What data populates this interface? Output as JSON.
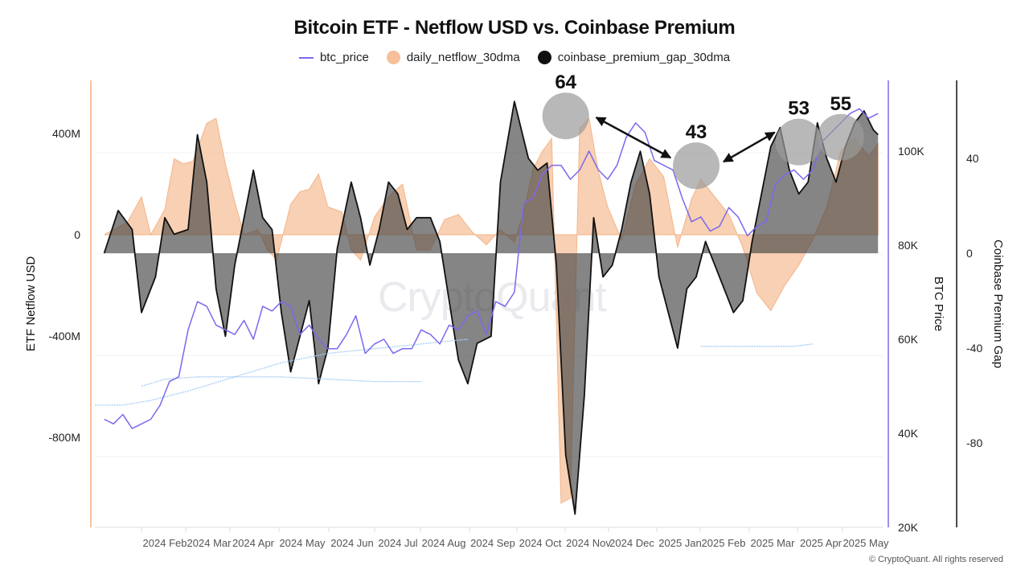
{
  "chart_data": {
    "type": "area",
    "title": "Bitcoin ETF - Netflow USD vs. Coinbase Premium",
    "legend": {
      "placement": "top-center",
      "entries": [
        {
          "name": "btc_price",
          "marker": "line",
          "color": "#7b68ee"
        },
        {
          "name": "daily_netflow_30dma",
          "marker": "dot",
          "color": "#f5c09a"
        },
        {
          "name": "coinbase_premium_gap_30dma",
          "marker": "dot",
          "color": "#111111"
        }
      ]
    },
    "x_ticks": [
      "2024 Feb",
      "2024 Mar",
      "2024 Apr",
      "2024 May",
      "2024 Jun",
      "2024 Jul",
      "2024 Aug",
      "2024 Sep",
      "2024 Oct",
      "2024 Nov",
      "2024 Dec",
      "2025 Jan",
      "2025 Feb",
      "2025 Mar",
      "2025 Apr",
      "2025 May"
    ],
    "axes": {
      "left": {
        "label": "ETF Netflow USD",
        "ticks": [
          "400M",
          "0",
          "-400M",
          "-800M"
        ],
        "tick_values": [
          400,
          0,
          -400,
          -800
        ],
        "range": [
          -1150,
          550
        ],
        "unit": "M USD"
      },
      "right1": {
        "label": "BTC Price",
        "ticks": [
          "100K",
          "80K",
          "60K",
          "40K",
          "20K"
        ],
        "tick_values": [
          100,
          80,
          60,
          40,
          20
        ],
        "range": [
          20,
          115
        ],
        "unit": "K USD"
      },
      "right2": {
        "label": "Coinbase Premium Gap",
        "ticks": [
          "40",
          "0",
          "-40",
          "-80"
        ],
        "tick_values": [
          40,
          0,
          -40,
          -80
        ],
        "range": [
          -118,
          72
        ]
      }
    },
    "x_range": [
      0,
      16.9
    ],
    "series": [
      {
        "name": "daily_netflow_30dma",
        "axis": "left",
        "x": [
          0.2,
          0.7,
          1.0,
          1.2,
          1.5,
          1.7,
          1.9,
          2.1,
          2.4,
          2.6,
          2.8,
          3.0,
          3.2,
          3.5,
          3.7,
          3.9,
          4.2,
          4.4,
          4.6,
          4.8,
          5.0,
          5.3,
          5.5,
          5.7,
          6.0,
          6.3,
          6.6,
          6.9,
          7.2,
          7.5,
          7.8,
          8.1,
          8.4,
          8.7,
          9.0,
          9.2,
          9.4,
          9.6,
          9.8,
          10.0,
          10.2,
          10.4,
          10.6,
          10.8,
          11.0,
          11.3,
          11.6,
          11.9,
          12.2,
          12.5,
          12.8,
          13.0,
          13.3,
          13.6,
          13.9,
          14.2,
          14.5,
          14.8,
          15.1,
          15.4,
          15.7,
          16.0,
          16.3,
          16.6,
          16.8
        ],
        "values": [
          0,
          50,
          150,
          0,
          100,
          300,
          280,
          290,
          440,
          460,
          280,
          130,
          0,
          20,
          -60,
          -100,
          120,
          170,
          180,
          240,
          110,
          90,
          -60,
          -100,
          70,
          150,
          200,
          -60,
          -60,
          60,
          80,
          10,
          -40,
          20,
          -30,
          90,
          260,
          330,
          380,
          -1060,
          -1040,
          420,
          460,
          250,
          110,
          -20,
          200,
          300,
          230,
          -50,
          140,
          220,
          150,
          80,
          -50,
          -230,
          -300,
          -200,
          -120,
          -20,
          110,
          330,
          380,
          310,
          360
        ]
      },
      {
        "name": "coinbase_premium_gap_30dma",
        "axis": "right2",
        "x": [
          0.2,
          0.5,
          0.8,
          1.0,
          1.3,
          1.5,
          1.7,
          2.0,
          2.2,
          2.4,
          2.6,
          2.8,
          3.0,
          3.2,
          3.4,
          3.6,
          3.8,
          4.0,
          4.2,
          4.4,
          4.6,
          4.8,
          5.0,
          5.2,
          5.5,
          5.7,
          5.9,
          6.1,
          6.3,
          6.5,
          6.7,
          6.9,
          7.2,
          7.4,
          7.6,
          7.8,
          8.0,
          8.2,
          8.5,
          8.7,
          9.0,
          9.3,
          9.5,
          9.7,
          9.9,
          10.1,
          10.3,
          10.5,
          10.7,
          10.9,
          11.1,
          11.3,
          11.5,
          11.7,
          11.9,
          12.1,
          12.3,
          12.5,
          12.7,
          12.9,
          13.1,
          13.3,
          13.5,
          13.7,
          13.9,
          14.1,
          14.3,
          14.5,
          14.7,
          14.9,
          15.1,
          15.3,
          15.5,
          15.7,
          15.9,
          16.1,
          16.3,
          16.5,
          16.7,
          16.8
        ],
        "values": [
          0,
          18,
          10,
          -25,
          -10,
          15,
          8,
          10,
          50,
          30,
          -15,
          -35,
          -5,
          15,
          35,
          15,
          10,
          -25,
          -50,
          -35,
          -20,
          -55,
          -40,
          2,
          30,
          15,
          -5,
          10,
          30,
          25,
          10,
          15,
          15,
          5,
          -20,
          -45,
          -55,
          -38,
          -35,
          30,
          64,
          40,
          35,
          38,
          -5,
          -85,
          -110,
          -60,
          15,
          -10,
          -5,
          10,
          30,
          43,
          25,
          -10,
          -25,
          -40,
          -15,
          -10,
          5,
          -5,
          -15,
          -25,
          -20,
          5,
          25,
          45,
          53,
          35,
          25,
          30,
          55,
          40,
          30,
          45,
          55,
          60,
          52,
          50
        ]
      },
      {
        "name": "btc_price",
        "axis": "right1",
        "unit": "K USD",
        "x": [
          0.2,
          0.4,
          0.6,
          0.8,
          1.0,
          1.2,
          1.4,
          1.6,
          1.8,
          2.0,
          2.2,
          2.4,
          2.6,
          2.8,
          3.0,
          3.2,
          3.4,
          3.6,
          3.8,
          4.0,
          4.2,
          4.4,
          4.6,
          4.8,
          5.0,
          5.2,
          5.4,
          5.6,
          5.8,
          6.0,
          6.2,
          6.4,
          6.6,
          6.8,
          7.0,
          7.2,
          7.4,
          7.6,
          7.8,
          8.0,
          8.2,
          8.4,
          8.6,
          8.8,
          9.0,
          9.2,
          9.4,
          9.6,
          9.8,
          10.0,
          10.2,
          10.4,
          10.6,
          10.8,
          11.0,
          11.2,
          11.4,
          11.6,
          11.8,
          12.0,
          12.2,
          12.4,
          12.6,
          12.8,
          13.0,
          13.2,
          13.4,
          13.6,
          13.8,
          14.0,
          14.2,
          14.4,
          14.6,
          14.8,
          15.0,
          15.2,
          15.4,
          15.6,
          15.8,
          16.0,
          16.2,
          16.4,
          16.6,
          16.8
        ],
        "values": [
          43,
          42,
          44,
          41,
          42,
          43,
          46,
          51,
          52,
          62,
          68,
          67,
          63,
          62,
          61,
          64,
          60,
          67,
          66,
          68,
          67,
          61,
          63,
          60,
          58,
          58,
          61,
          65,
          57,
          59,
          60,
          57,
          58,
          58,
          62,
          61,
          59,
          63,
          62,
          65,
          66,
          61,
          68,
          67,
          70,
          89,
          90,
          95,
          97,
          97,
          94,
          96,
          100,
          96,
          94,
          97,
          103,
          106,
          104,
          98,
          97,
          96,
          90,
          85,
          86,
          83,
          84,
          88,
          86,
          82,
          84,
          85,
          93,
          95,
          96,
          94,
          96,
          102,
          104,
          106,
          108,
          109,
          107,
          108
        ]
      },
      {
        "name": "btc_price_moving_average_lines",
        "axis": "right1",
        "unit": "K USD",
        "segments": [
          {
            "x": [
              0.0,
              0.6,
              1.2,
              2.0,
              3.0,
              4.0,
              5.0,
              6.0,
              7.0,
              8.0
            ],
            "values": [
              46,
              46,
              47,
              49,
              52,
              55,
              57,
              58,
              59,
              60
            ]
          },
          {
            "x": [
              1.0,
              1.5,
              2.2,
              3.0,
              4.0,
              5.0,
              6.0,
              7.0
            ],
            "values": [
              50,
              51.5,
              52,
              52,
              52,
              51.5,
              51,
              51
            ]
          },
          {
            "x": [
              13.0,
              14.0,
              15.0,
              15.4
            ],
            "values": [
              58.5,
              58.5,
              58.5,
              59
            ]
          }
        ]
      }
    ],
    "annotations": [
      {
        "text": "64",
        "x": 10.1,
        "value_right2": 64
      },
      {
        "text": "43",
        "x": 12.9,
        "value_right2": 43
      },
      {
        "text": "53",
        "x": 15.1,
        "value_right2": 53
      },
      {
        "text": "55",
        "x": 16.0,
        "value_right2": 55
      }
    ],
    "watermark": "CryptoQuant",
    "copyright": "© CryptoQuant. All rights reserved",
    "grid": true
  }
}
